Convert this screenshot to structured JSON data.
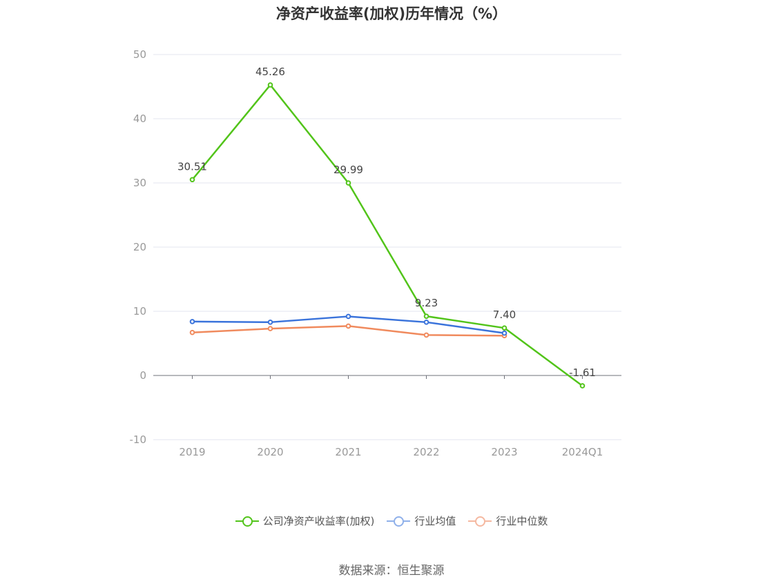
{
  "chart_data": {
    "type": "line",
    "title": "净资产收益率(加权)历年情况（%）",
    "categories": [
      "2019",
      "2020",
      "2021",
      "2022",
      "2023",
      "2024Q1"
    ],
    "ylim": [
      -10,
      50
    ],
    "yticks": [
      -10,
      0,
      10,
      20,
      30,
      40,
      50
    ],
    "grid": true,
    "legend_position": "bottom",
    "series": [
      {
        "name": "公司净资产收益率(加权)",
        "color": "#52c41a",
        "values": [
          30.51,
          45.26,
          29.99,
          9.23,
          7.4,
          -1.61
        ],
        "labels": [
          "30.51",
          "45.26",
          "29.99",
          "9.23",
          "7.40",
          "-1.61"
        ]
      },
      {
        "name": "行业均值",
        "color": "#3a73db",
        "values": [
          8.4,
          8.3,
          9.2,
          8.3,
          6.6,
          null
        ]
      },
      {
        "name": "行业中位数",
        "color": "#f08a5d",
        "values": [
          6.7,
          7.3,
          7.7,
          6.3,
          6.2,
          null
        ]
      }
    ]
  },
  "legend": {
    "items": [
      {
        "label": "公司净资产收益率(加权)",
        "color": "#52c41a"
      },
      {
        "label": "行业均值",
        "color": "#8fb0ea"
      },
      {
        "label": "行业中位数",
        "color": "#f5b8a0"
      }
    ]
  },
  "source": "数据来源：恒生聚源"
}
